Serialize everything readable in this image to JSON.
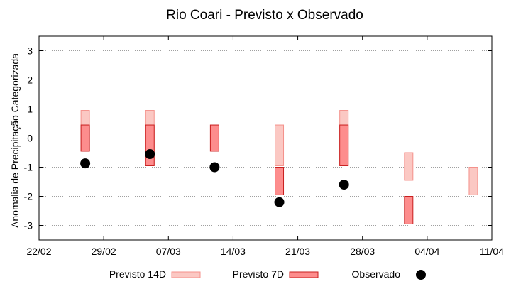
{
  "chart_data": {
    "type": "range-bar",
    "title": "Rio Coari - Previsto x Observado",
    "ylabel": "Anomalia de Precipitação Categorizada",
    "xlabel": "",
    "ylim": [
      -3.5,
      3.5
    ],
    "yticks": [
      3,
      2,
      1,
      0,
      -1,
      -2,
      -3
    ],
    "xlim_days": [
      0,
      49
    ],
    "xticks": [
      {
        "label": "22/02",
        "day": 0
      },
      {
        "label": "29/02",
        "day": 7
      },
      {
        "label": "07/03",
        "day": 14
      },
      {
        "label": "14/03",
        "day": 21
      },
      {
        "label": "21/03",
        "day": 28
      },
      {
        "label": "28/03",
        "day": 35
      },
      {
        "label": "04/04",
        "day": 42
      },
      {
        "label": "11/04",
        "day": 49
      }
    ],
    "grid": true,
    "series": [
      {
        "name": "Previsto 14D",
        "color": "#fbc8c3",
        "edge": "#f4918b",
        "bars": [
          {
            "day": 5,
            "low": -0.45,
            "high": 0.95
          },
          {
            "day": 12,
            "low": -0.95,
            "high": 0.95
          },
          {
            "day": 26,
            "low": -0.95,
            "high": 0.45
          },
          {
            "day": 33,
            "low": -0.95,
            "high": 0.95
          },
          {
            "day": 40,
            "low": -1.45,
            "high": -0.5
          },
          {
            "day": 47,
            "low": -1.95,
            "high": -1.0
          }
        ]
      },
      {
        "name": "Previsto 7D",
        "color": "#fd8d8d",
        "edge": "#c81e1e",
        "bars": [
          {
            "day": 5,
            "low": -0.45,
            "high": 0.45
          },
          {
            "day": 12,
            "low": -0.95,
            "high": 0.45
          },
          {
            "day": 19,
            "low": -0.45,
            "high": 0.45
          },
          {
            "day": 26,
            "low": -1.95,
            "high": -1.0
          },
          {
            "day": 33,
            "low": -0.95,
            "high": 0.45
          },
          {
            "day": 40,
            "low": -2.95,
            "high": -2.0
          }
        ]
      },
      {
        "name": "Observado",
        "color": "#000000",
        "points": [
          {
            "day": 5,
            "value": -0.87
          },
          {
            "day": 12,
            "value": -0.55
          },
          {
            "day": 19,
            "value": -1.0
          },
          {
            "day": 26,
            "value": -2.2
          },
          {
            "day": 33,
            "value": -1.6
          }
        ]
      }
    ],
    "legend": {
      "position": "bottom"
    }
  }
}
